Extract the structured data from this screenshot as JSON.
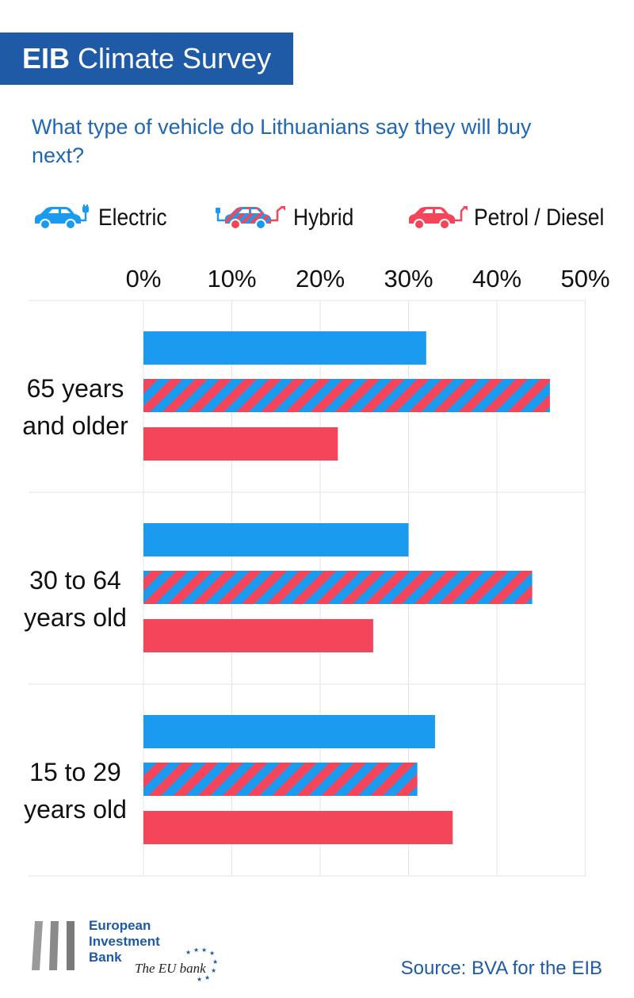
{
  "header": {
    "brand": "EIB",
    "title": "Climate Survey",
    "question": "What type of vehicle do Lithuanians say they will buy next?"
  },
  "legend": [
    {
      "label": "Electric",
      "icon": "electric-car-icon",
      "color": "#1a9bf0"
    },
    {
      "label": "Hybrid",
      "icon": "hybrid-car-icon",
      "color": "#f4455a"
    },
    {
      "label": "Petrol / Diesel",
      "icon": "petrol-car-icon",
      "color": "#f4455a"
    }
  ],
  "chart_data": {
    "type": "bar",
    "orientation": "horizontal",
    "title": "What type of vehicle do Lithuanians say they will buy next?",
    "categories": [
      "65 years and older",
      "30 to 64 years old",
      "15 to 29 years old"
    ],
    "category_lines": [
      [
        "65 years",
        "and older"
      ],
      [
        "30 to 64",
        "years old"
      ],
      [
        "15 to 29",
        "years old"
      ]
    ],
    "series": [
      {
        "name": "Electric",
        "values": [
          32,
          30,
          33
        ]
      },
      {
        "name": "Hybrid",
        "values": [
          46,
          44,
          31
        ]
      },
      {
        "name": "Petrol / Diesel",
        "values": [
          22,
          26,
          35
        ]
      }
    ],
    "xlim": [
      0,
      50
    ],
    "xticks": [
      0,
      10,
      20,
      30,
      40,
      50
    ],
    "xtick_labels": [
      "0%",
      "10%",
      "20%",
      "30%",
      "40%",
      "50%"
    ],
    "grid": true,
    "colors": {
      "electric": "#1a9bf0",
      "hybrid_a": "#1a9bf0",
      "hybrid_b": "#f4455a",
      "petrol": "#f4455a"
    }
  },
  "footer": {
    "logo_lines": [
      "European",
      "Investment",
      "Bank"
    ],
    "tagline": "The EU bank",
    "source": "Source: BVA for the EIB"
  }
}
